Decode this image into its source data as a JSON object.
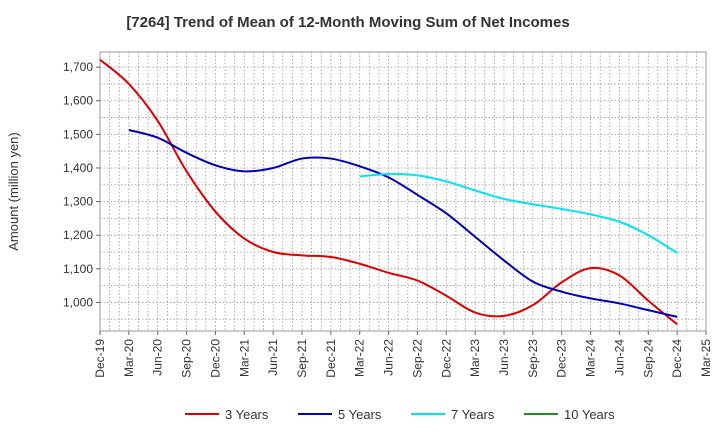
{
  "chart_data": {
    "type": "line",
    "title": "[7264]  Trend of Mean of 12-Month Moving Sum of Net Incomes",
    "xlabel": "",
    "ylabel": "Amount (million yen)",
    "ylim": [
      915,
      1745
    ],
    "yticks": [
      1000,
      1100,
      1200,
      1300,
      1400,
      1500,
      1600,
      1700
    ],
    "ytick_labels": [
      "1,000",
      "1,100",
      "1,200",
      "1,300",
      "1,400",
      "1,500",
      "1,600",
      "1,700"
    ],
    "x_tick_labels": [
      "Dec-19",
      "Mar-20",
      "Jun-20",
      "Sep-20",
      "Dec-20",
      "Mar-21",
      "Jun-21",
      "Sep-21",
      "Dec-21",
      "Mar-22",
      "Jun-22",
      "Sep-22",
      "Dec-22",
      "Mar-23",
      "Jun-23",
      "Sep-23",
      "Dec-23",
      "Mar-24",
      "Jun-24",
      "Sep-24",
      "Dec-24",
      "Mar-25"
    ],
    "x_range_quarters": [
      0,
      21
    ],
    "grid": true,
    "legend_position": "bottom",
    "series": [
      {
        "name": "3 Years",
        "color": "#dd0000",
        "points": [
          [
            0,
            1722
          ],
          [
            1,
            1650
          ],
          [
            2,
            1540
          ],
          [
            3,
            1390
          ],
          [
            4,
            1270
          ],
          [
            5,
            1190
          ],
          [
            6,
            1150
          ],
          [
            7,
            1140
          ],
          [
            8,
            1135
          ],
          [
            9,
            1115
          ],
          [
            10,
            1088
          ],
          [
            11,
            1065
          ],
          [
            12,
            1020
          ],
          [
            13,
            970
          ],
          [
            14,
            960
          ],
          [
            15,
            992
          ],
          [
            16,
            1060
          ],
          [
            17,
            1102
          ],
          [
            18,
            1080
          ],
          [
            19,
            1005
          ],
          [
            20,
            935
          ]
        ]
      },
      {
        "name": "5 Years",
        "color": "#0000bb",
        "points": [
          [
            1,
            1513
          ],
          [
            2,
            1490
          ],
          [
            3,
            1445
          ],
          [
            4,
            1408
          ],
          [
            5,
            1390
          ],
          [
            6,
            1400
          ],
          [
            7,
            1428
          ],
          [
            8,
            1428
          ],
          [
            9,
            1405
          ],
          [
            10,
            1372
          ],
          [
            11,
            1320
          ],
          [
            12,
            1265
          ],
          [
            13,
            1195
          ],
          [
            14,
            1125
          ],
          [
            15,
            1062
          ],
          [
            16,
            1032
          ],
          [
            17,
            1012
          ],
          [
            18,
            997
          ],
          [
            19,
            977
          ],
          [
            20,
            957
          ]
        ]
      },
      {
        "name": "7 Years",
        "color": "#00e5ee",
        "points": [
          [
            9,
            1375
          ],
          [
            10,
            1382
          ],
          [
            11,
            1378
          ],
          [
            12,
            1360
          ],
          [
            13,
            1333
          ],
          [
            14,
            1308
          ],
          [
            15,
            1292
          ],
          [
            16,
            1278
          ],
          [
            17,
            1262
          ],
          [
            18,
            1240
          ],
          [
            19,
            1200
          ],
          [
            20,
            1147
          ]
        ]
      },
      {
        "name": "10 Years",
        "color": "#228b22",
        "points": []
      }
    ]
  }
}
